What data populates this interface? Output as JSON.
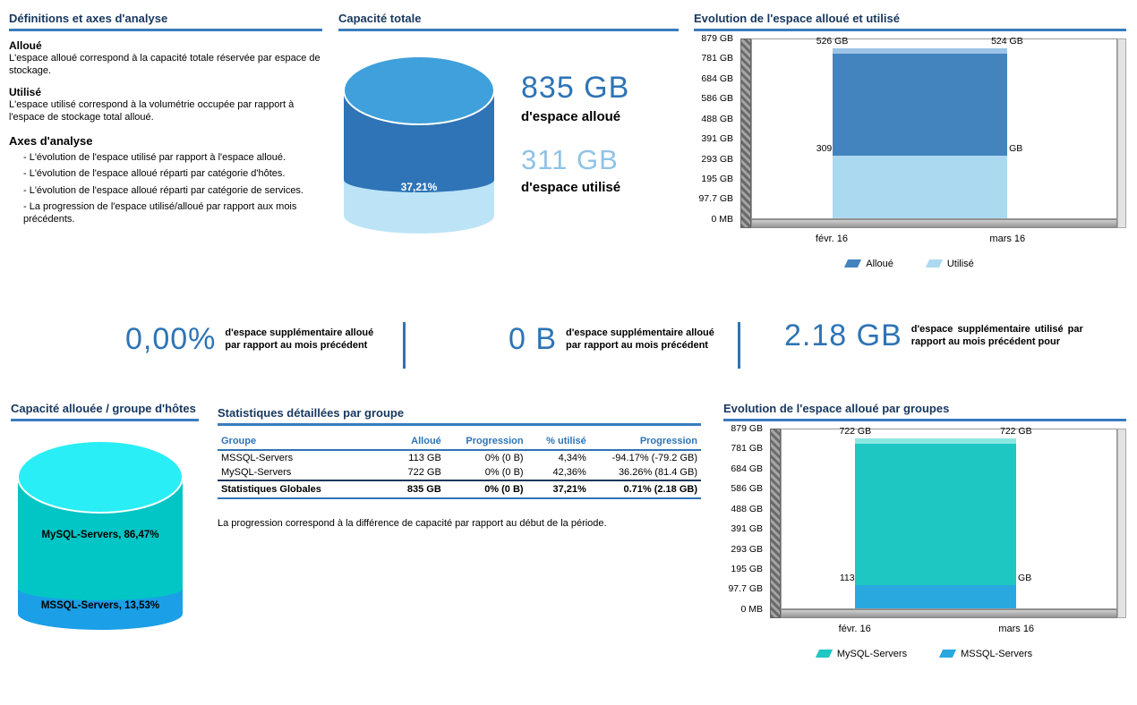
{
  "definitions": {
    "title": "Définitions et axes d'analyse",
    "blocks": [
      {
        "heading": "Alloué",
        "text": "L'espace alloué correspond à la capacité totale réservée par espace de stockage."
      },
      {
        "heading": "Utilisé",
        "text": "L'espace utilisé correspond à la volumétrie occupée par rapport à l'espace de stockage total alloué."
      }
    ],
    "axes_heading": "Axes d'analyse",
    "axes_items": [
      "- L'évolution de l'espace utilisé par rapport à l'espace alloué.",
      "- L'évolution de l'espace alloué réparti par catégorie d'hôtes.",
      "- L'évolution de l'espace alloué réparti par catégorie de services.",
      "- La progression de l'espace utilisé/alloué par rapport aux mois précédents."
    ]
  },
  "capacite_totale": {
    "title": "Capacité totale",
    "cylinder_label": "37,21%",
    "allocated_value": "835 GB",
    "allocated_caption": "d'espace alloué",
    "used_value": "311 GB",
    "used_caption": "d'espace utilisé"
  },
  "kpis": [
    {
      "value": "0,00%",
      "desc": "d'espace supplémentaire alloué par rapport au mois précédent"
    },
    {
      "value": "0 B",
      "desc": "d'espace supplémentaire alloué par rapport au mois précédent"
    },
    {
      "value": "2.18 GB",
      "desc": "d'espace supplémentaire utilisé par rapport au mois précédent pour"
    }
  ],
  "stats_table": {
    "title": "Statistiques détaillées par groupe",
    "headers": [
      "Groupe",
      "Alloué",
      "Progression",
      "% utilisé",
      "Progression"
    ],
    "rows": [
      [
        "MSSQL-Servers",
        "113 GB",
        "0% (0 B)",
        "4,34%",
        "-94.17% (-79.2 GB)"
      ],
      [
        "MySQL-Servers",
        "722 GB",
        "0% (0 B)",
        "42,36%",
        "36.26% (81.4 GB)"
      ]
    ],
    "total_row": [
      "Statistiques Globales",
      "835 GB",
      "0% (0 B)",
      "37,21%",
      "0.71% (2.18 GB)"
    ],
    "note": "La progression correspond à la différence de capacité par rapport au début de la période."
  },
  "chart_data": [
    {
      "id": "evolution-alloue-utilise",
      "type": "area",
      "title": "Evolution de l'espace alloué et utilisé",
      "categories": [
        "févr. 16",
        "mars 16"
      ],
      "stacked": true,
      "unit": "GB",
      "y_max": 879,
      "y_ticks": [
        "879 GB",
        "781 GB",
        "684 GB",
        "586 GB",
        "488 GB",
        "391 GB",
        "293 GB",
        "195 GB",
        "97.7 GB",
        "0 MB"
      ],
      "series": [
        {
          "name": "Utilisé",
          "color": "#ABD9F0",
          "values": [
            309,
            311
          ],
          "labels": [
            "309 GB",
            "311 GB"
          ]
        },
        {
          "name": "Alloué",
          "color": "#4384BE",
          "cap": "#9DC3E6",
          "values": [
            526,
            524
          ],
          "labels": [
            "526 GB",
            "524 GB"
          ]
        }
      ],
      "legend": [
        "Alloué",
        "Utilisé"
      ],
      "legend_position": "bottom"
    },
    {
      "id": "evolution-alloue-par-groupes",
      "type": "area",
      "title": "Evolution de l'espace alloué par groupes",
      "categories": [
        "févr. 16",
        "mars 16"
      ],
      "stacked": true,
      "unit": "GB",
      "y_max": 879,
      "y_ticks": [
        "879 GB",
        "781 GB",
        "684 GB",
        "586 GB",
        "488 GB",
        "391 GB",
        "293 GB",
        "195 GB",
        "97.7 GB",
        "0 MB"
      ],
      "series": [
        {
          "name": "MSSQL-Servers",
          "color": "#29A8E0",
          "values": [
            113,
            113
          ],
          "labels": [
            "113 GB",
            "113 GB"
          ]
        },
        {
          "name": "MySQL-Servers",
          "color": "#1EC7C2",
          "cap": "#8BE8E0",
          "values": [
            722,
            722
          ],
          "labels": [
            "722 GB",
            "722 GB"
          ]
        }
      ],
      "legend": [
        "MySQL-Servers",
        "MSSQL-Servers"
      ],
      "legend_position": "bottom"
    },
    {
      "id": "capacite-totale-cylindre",
      "type": "pie",
      "title": "Capacité totale",
      "label": "37,21%",
      "slices": [
        {
          "label": "alloué non utilisé",
          "value": 62.79
        },
        {
          "label": "utilisé",
          "value": 37.21
        }
      ],
      "colors": {
        "top": "#3FA0DB",
        "allocated": "#2E74B6",
        "used": "#BCE4F6",
        "label_text": "#FFFFFF"
      }
    },
    {
      "id": "capacite-allouee-par-groupe",
      "type": "pie",
      "title": "Capacité allouée / groupe d'hôtes",
      "slices": [
        {
          "label": "MySQL-Servers, 86,47%",
          "value": 86.47,
          "color": "#02C5C5"
        },
        {
          "label": "MSSQL-Servers, 13,53%",
          "value": 13.53,
          "color": "#1B9FE6"
        }
      ],
      "colors": {
        "top": "#29EEF5",
        "mysql_side": "#02C5C5",
        "mssql_side": "#1B9FE6"
      }
    }
  ]
}
